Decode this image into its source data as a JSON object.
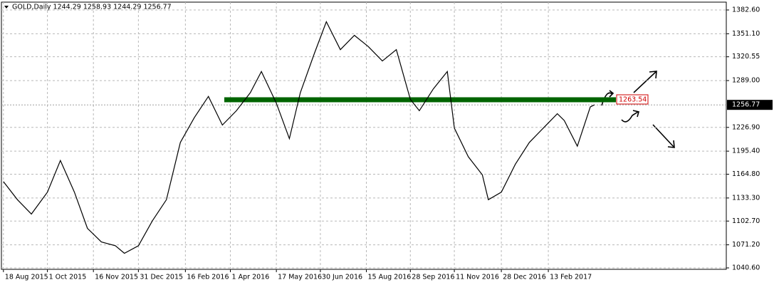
{
  "chart_data": {
    "type": "line",
    "title": "GOLD,Daily  1244.29 1258.93 1244.29 1256.77",
    "x": [
      "2015-08-18",
      "2015-09-01",
      "2015-09-15",
      "2015-10-01",
      "2015-10-14",
      "2015-10-28",
      "2015-11-10",
      "2015-11-24",
      "2015-12-08",
      "2015-12-17",
      "2015-12-31",
      "2016-01-14",
      "2016-01-28",
      "2016-02-11",
      "2016-02-25",
      "2016-03-10",
      "2016-03-24",
      "2016-04-07",
      "2016-04-21",
      "2016-05-02",
      "2016-05-17",
      "2016-05-30",
      "2016-06-10",
      "2016-06-24",
      "2016-07-06",
      "2016-07-20",
      "2016-08-03",
      "2016-08-17",
      "2016-08-31",
      "2016-09-14",
      "2016-09-28",
      "2016-10-07",
      "2016-10-21",
      "2016-11-04",
      "2016-11-11",
      "2016-11-25",
      "2016-12-09",
      "2016-12-15",
      "2016-12-28",
      "2017-01-11",
      "2017-01-25",
      "2017-02-08",
      "2017-02-22",
      "2017-03-01",
      "2017-03-14",
      "2017-03-27",
      "2017-03-31"
    ],
    "values": [
      1155,
      1131,
      1112,
      1141,
      1183,
      1141,
      1093,
      1075,
      1070,
      1060,
      1070,
      1103,
      1131,
      1207,
      1240,
      1268,
      1230,
      1249,
      1273,
      1301,
      1259,
      1212,
      1273,
      1325,
      1367,
      1330,
      1349,
      1334,
      1315,
      1330,
      1264,
      1249,
      1278,
      1301,
      1226,
      1188,
      1164,
      1131,
      1141,
      1178,
      1207,
      1226,
      1245,
      1236,
      1202,
      1254,
      1256.77
    ],
    "color": "#000000",
    "xlim": [
      "2015-08-16",
      "2017-08-10"
    ],
    "xticks": [
      {
        "value": "2015-08-18",
        "label": "18 Aug 2015"
      },
      {
        "value": "2015-10-01",
        "label": "1 Oct 2015"
      },
      {
        "value": "2015-11-16",
        "label": "16 Nov 2015"
      },
      {
        "value": "2015-12-31",
        "label": "31 Dec 2015"
      },
      {
        "value": "2016-02-16",
        "label": "16 Feb 2016"
      },
      {
        "value": "2016-04-01",
        "label": "1 Apr 2016"
      },
      {
        "value": "2016-05-17",
        "label": "17 May 2016"
      },
      {
        "value": "2016-06-30",
        "label": "30 Jun 2016"
      },
      {
        "value": "2016-08-15",
        "label": "15 Aug 2016"
      },
      {
        "value": "2016-09-28",
        "label": "28 Sep 2016"
      },
      {
        "value": "2016-11-11",
        "label": "11 Nov 2016"
      },
      {
        "value": "2016-12-28",
        "label": "28 Dec 2016"
      },
      {
        "value": "2017-02-13",
        "label": "13 Feb 2017"
      }
    ],
    "ylim": [
      1038.7,
      1393.0
    ],
    "yticks": [
      {
        "value": 1382.6,
        "label": "1382.60"
      },
      {
        "value": 1351.1,
        "label": "1351.10"
      },
      {
        "value": 1320.55,
        "label": "1320.55"
      },
      {
        "value": 1289.0,
        "label": "1289.00"
      },
      {
        "value": 1226.9,
        "label": "1226.90"
      },
      {
        "value": 1195.4,
        "label": "1195.40"
      },
      {
        "value": 1164.8,
        "label": "1164.80"
      },
      {
        "value": 1133.3,
        "label": "1133.30"
      },
      {
        "value": 1102.7,
        "label": "1102.70"
      },
      {
        "value": 1071.2,
        "label": "1071.20"
      },
      {
        "value": 1040.6,
        "label": "1040.60"
      }
    ],
    "grid": true,
    "level": 1263.54,
    "level_color": "#006400",
    "current_price": 1256.77
  }
}
